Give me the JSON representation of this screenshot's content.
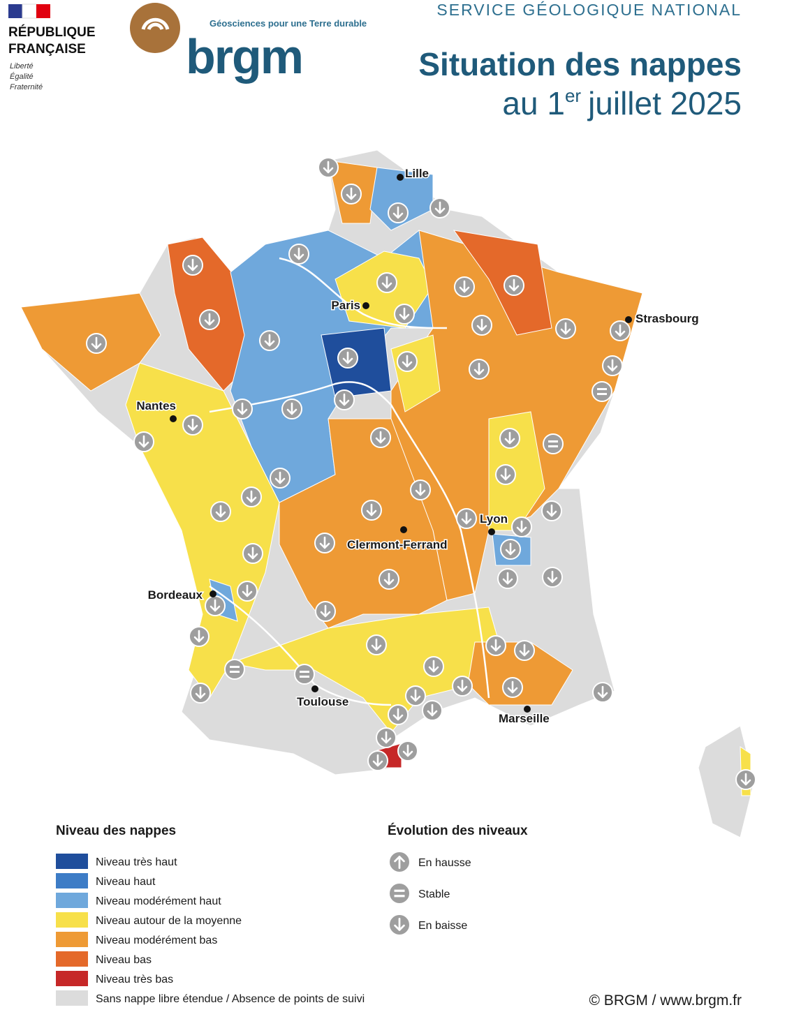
{
  "header": {
    "republique": [
      "RÉPUBLIQUE",
      "FRANÇAISE"
    ],
    "motto": [
      "Liberté",
      "Égalité",
      "Fraternité"
    ],
    "tagline": "Géosciences pour une Terre durable",
    "logo": "brgm",
    "service": "SERVICE GÉOLOGIQUE NATIONAL",
    "title": "Situation des nappes",
    "subtitle": {
      "prefix": "au 1",
      "sup": "er",
      "suffix": "juillet 2025"
    }
  },
  "cities": [
    "Lille",
    "Paris",
    "Strasbourg",
    "Nantes",
    "Lyon",
    "Clermont-Ferrand",
    "Bordeaux",
    "Toulouse",
    "Marseille"
  ],
  "legend_levels": {
    "title": "Niveau des nappes",
    "items": [
      {
        "label": "Niveau très haut",
        "color": "#1f4e9c"
      },
      {
        "label": "Niveau haut",
        "color": "#3d7cc6"
      },
      {
        "label": "Niveau modérément haut",
        "color": "#6fa8dc"
      },
      {
        "label": "Niveau autour de la moyenne",
        "color": "#f7e04a"
      },
      {
        "label": "Niveau modérément bas",
        "color": "#ee9a35"
      },
      {
        "label": "Niveau bas",
        "color": "#e4692a"
      },
      {
        "label": "Niveau très bas",
        "color": "#c62828"
      },
      {
        "label": "Sans nappe libre étendue / Absence de points de suivi",
        "color": "#dcdcdc"
      }
    ]
  },
  "legend_trend": {
    "title": "Évolution des niveaux",
    "items": [
      "En hausse",
      "Stable",
      "En baisse"
    ]
  },
  "footer": "© BRGM / www.brgm.fr"
}
